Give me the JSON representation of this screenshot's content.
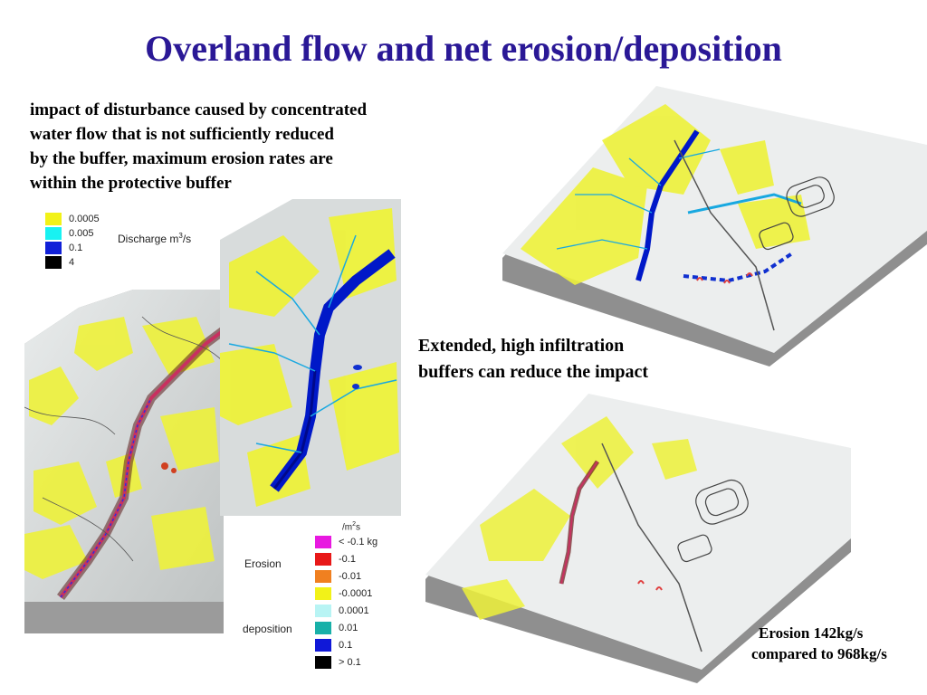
{
  "slide": {
    "title": "Overland flow and net erosion/deposition",
    "intro_lines": [
      "impact of disturbance caused by concentrated",
      "water flow that is not sufficiently reduced",
      "by the buffer, maximum erosion rates are",
      "within the  protective buffer"
    ],
    "claim_lines": [
      "Extended, high infiltration",
      "buffers can reduce the impact"
    ],
    "compare_lines": [
      "Erosion 142kg/s",
      "compared to 968kg/s"
    ]
  },
  "discharge_legend": {
    "title_prefix": "Discharge m",
    "title_sup": "3",
    "title_suffix": "/s",
    "items": [
      {
        "label": "0.0005",
        "color": "#f2f218"
      },
      {
        "label": "0.005",
        "color": "#18f2f2"
      },
      {
        "label": "0.1",
        "color": "#1020d8"
      },
      {
        "label": "4",
        "color": "#000000"
      }
    ]
  },
  "erosion_legend": {
    "unit_prefix": "/m",
    "unit_sup": "2",
    "unit_suffix": "s",
    "erosion_label": "Erosion",
    "deposition_label": "deposition",
    "items": [
      {
        "label": "< -0.1  kg",
        "color": "#e818e0"
      },
      {
        "label": "-0.1",
        "color": "#e81818"
      },
      {
        "label": "-0.01",
        "color": "#f08020"
      },
      {
        "label": "-0.0001",
        "color": "#f2f218"
      },
      {
        "label": "0.0001",
        "color": "#b8f4f4"
      },
      {
        "label": "0.01",
        "color": "#18b0a8"
      },
      {
        "label": "0.1",
        "color": "#1018d8"
      },
      {
        "label": "> 0.1",
        "color": "#000000"
      }
    ]
  }
}
